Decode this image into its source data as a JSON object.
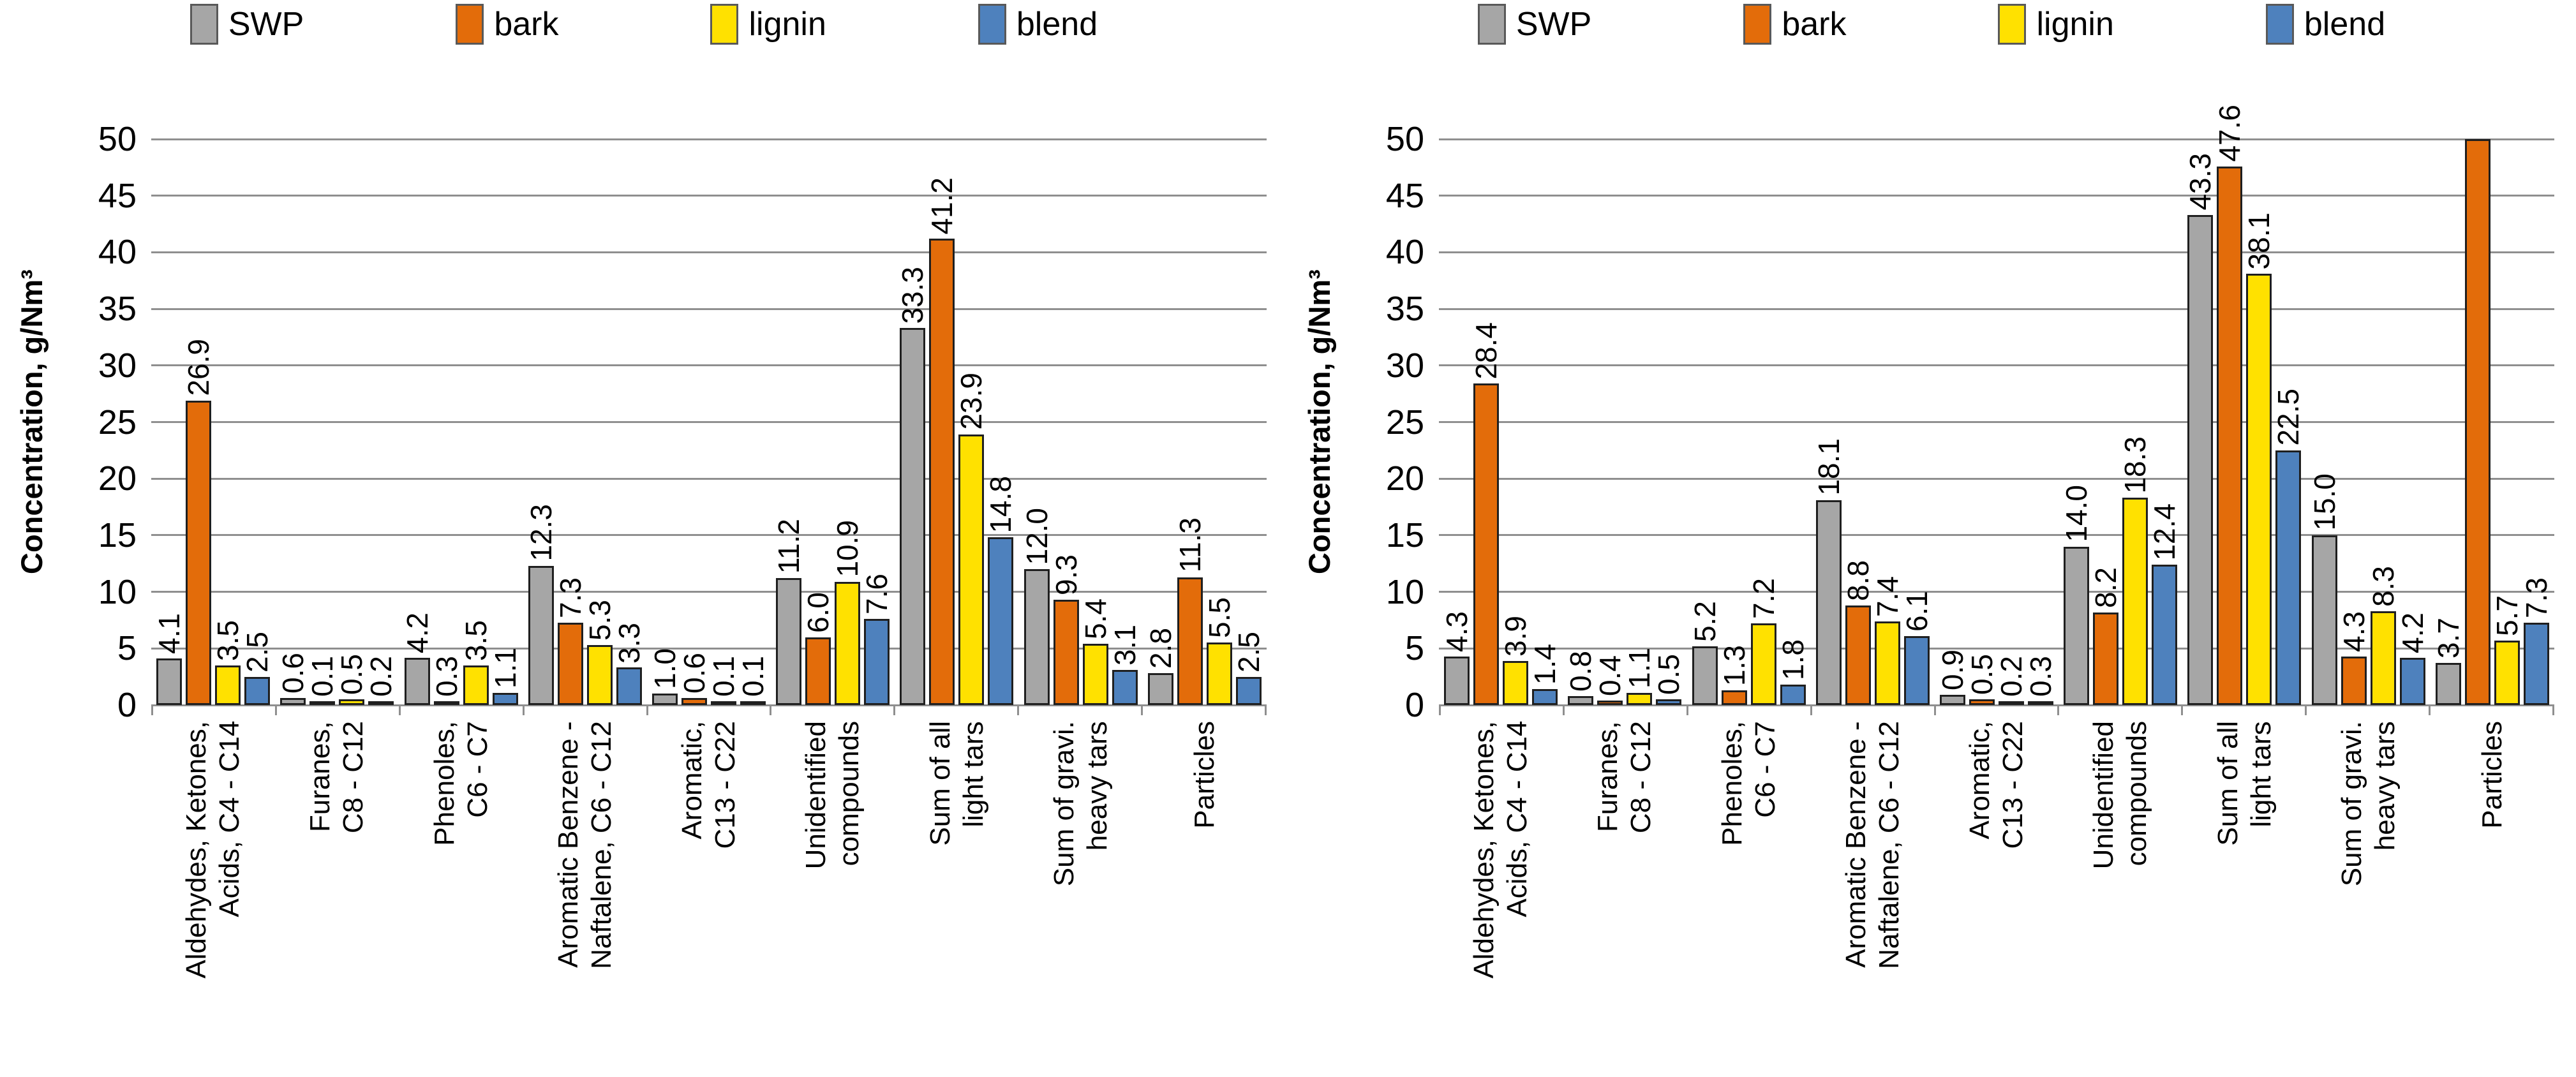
{
  "figure": {
    "background": "#ffffff"
  },
  "chart_data": [
    {
      "type": "bar",
      "title": "",
      "ylabel": "Concentration, g/Nm³",
      "xlabel": "",
      "ylim": [
        0,
        50
      ],
      "ytick_step": 5,
      "grid": true,
      "legend_position": "top",
      "categories": [
        "Aldehydes, Ketones,\nAcids, C4 - C14",
        "Furanes,\nC8 - C12",
        "Phenoles,\nC6 - C7",
        "Aromatic Benzene -\nNaftalene, C6 - C12",
        "Aromatic,\nC13 - C22",
        "Unidentified\ncompounds",
        "Sum of all\nlight tars",
        "Sum of gravi.\nheavy tars",
        "Particles"
      ],
      "series": [
        {
          "name": "SWP",
          "color": "#A6A6A6",
          "values": [
            4.1,
            0.6,
            4.2,
            12.3,
            1.0,
            11.2,
            33.3,
            12.0,
            2.8
          ],
          "labels": [
            "4.1",
            "0.6",
            "4.2",
            "12.3",
            "1.0",
            "11.2",
            "33.3",
            "12.0",
            "2.8"
          ]
        },
        {
          "name": "bark",
          "color": "#E36C0A",
          "values": [
            26.9,
            0.1,
            0.3,
            7.3,
            0.6,
            6.0,
            41.2,
            9.3,
            11.3
          ],
          "labels": [
            "26.9",
            "0.1",
            "0.3",
            "7.3",
            "0.6",
            "6.0",
            "41.2",
            "9.3",
            "11.3"
          ]
        },
        {
          "name": "lignin",
          "color": "#FFE100",
          "values": [
            3.5,
            0.5,
            3.5,
            5.3,
            0.1,
            10.9,
            23.9,
            5.4,
            5.5
          ],
          "labels": [
            "3.5",
            "0.5",
            "3.5",
            "5.3",
            "0.1",
            "10.9",
            "23.9",
            "5.4",
            "5.5"
          ]
        },
        {
          "name": "blend",
          "color": "#4E81BD",
          "values": [
            2.5,
            0.2,
            1.1,
            3.3,
            0.1,
            7.6,
            14.8,
            3.1,
            2.5
          ],
          "labels": [
            "2.5",
            "0.2",
            "1.1",
            "3.3",
            "0.1",
            "7.6",
            "14.8",
            "3.1",
            "2.5"
          ]
        }
      ]
    },
    {
      "type": "bar",
      "title": "",
      "ylabel": "Concentration, g/Nm³",
      "xlabel": "",
      "ylim": [
        0,
        50
      ],
      "ytick_step": 5,
      "grid": true,
      "legend_position": "top",
      "categories": [
        "Aldehydes, Ketones,\nAcids, C4 - C14",
        "Furanes,\nC8 - C12",
        "Phenoles,\nC6 - C7",
        "Aromatic Benzene -\nNaftalene, C6 - C12",
        "Aromatic,\nC13 - C22",
        "Unidentified\ncompounds",
        "Sum of all\nlight tars",
        "Sum of gravi.\nheavy tars",
        "Particles"
      ],
      "series": [
        {
          "name": "SWP",
          "color": "#A6A6A6",
          "values": [
            4.3,
            0.8,
            5.2,
            18.1,
            0.9,
            14.0,
            43.3,
            15.0,
            3.7
          ],
          "labels": [
            "4.3",
            "0.8",
            "5.2",
            "18.1",
            "0.9",
            "14.0",
            "43.3",
            "15.0",
            "3.7"
          ]
        },
        {
          "name": "bark",
          "color": "#E36C0A",
          "values": [
            28.4,
            0.4,
            1.3,
            8.8,
            0.5,
            8.2,
            47.6,
            4.3,
            50
          ],
          "labels": [
            "28.4",
            "0.4",
            "1.3",
            "8.8",
            "0.5",
            "8.2",
            "47.6",
            "4.3",
            ""
          ]
        },
        {
          "name": "lignin",
          "color": "#FFE100",
          "values": [
            3.9,
            1.1,
            7.2,
            7.4,
            0.2,
            18.3,
            38.1,
            8.3,
            5.7
          ],
          "labels": [
            "3.9",
            "1.1",
            "7.2",
            "7.4",
            "0.2",
            "18.3",
            "38.1",
            "8.3",
            "5.7"
          ]
        },
        {
          "name": "blend",
          "color": "#4E81BD",
          "values": [
            1.4,
            0.5,
            1.8,
            6.1,
            0.3,
            12.4,
            22.5,
            4.2,
            7.3
          ],
          "labels": [
            "1.4",
            "0.5",
            "1.8",
            "6.1",
            "0.3",
            "12.4",
            "22.5",
            "4.2",
            "7.3"
          ]
        }
      ]
    }
  ]
}
